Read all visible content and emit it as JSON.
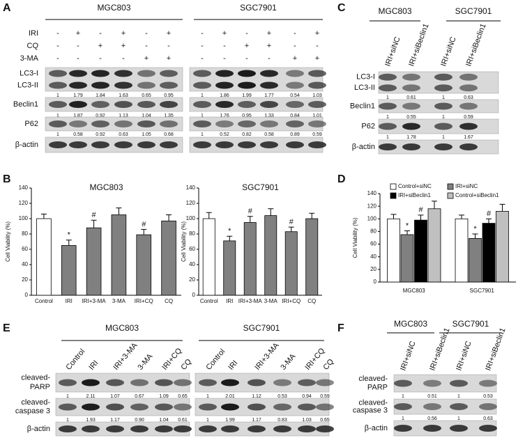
{
  "panels": {
    "A": {
      "letter": "A",
      "groups": [
        "MGC803",
        "SGC7901"
      ],
      "treatments": [
        {
          "name": "IRI",
          "signs": [
            "-",
            "+",
            "-",
            "+",
            "-",
            "+",
            "-",
            "+",
            "-",
            "+",
            "-",
            "+"
          ]
        },
        {
          "name": "CQ",
          "signs": [
            "-",
            "-",
            "+",
            "+",
            "-",
            "-",
            "-",
            "-",
            "+",
            "+",
            "-",
            "-"
          ]
        },
        {
          "name": "3-MA",
          "signs": [
            "-",
            "-",
            "-",
            "-",
            "+",
            "+",
            "-",
            "-",
            "-",
            "-",
            "+",
            "+"
          ]
        }
      ],
      "blots": [
        {
          "labels": [
            "LC3-I",
            "LC3-II"
          ],
          "quant": [
            "1",
            "1.79",
            "1.84",
            "1.63",
            "0.65",
            "0.95",
            "1",
            "1.86",
            "1.99",
            "1.77",
            "0.54",
            "1.03"
          ]
        },
        {
          "labels": [
            "Beclin1"
          ],
          "quant": [
            "1",
            "1.87",
            "0.92",
            "1.13",
            "1.04",
            "1.35",
            "1",
            "1.76",
            "0.95",
            "1.33",
            "0.84",
            "1.01"
          ]
        },
        {
          "labels": [
            "P62"
          ],
          "quant": [
            "1",
            "0.58",
            "0.92",
            "0.63",
            "1.05",
            "0.68",
            "1",
            "0.52",
            "0.82",
            "0.58",
            "0.89",
            "0.59"
          ]
        },
        {
          "labels": [
            "β-actin"
          ]
        }
      ]
    },
    "C": {
      "letter": "C",
      "groups": [
        "MGC803",
        "SGC7901"
      ],
      "columns": [
        "IRI+siNC",
        "IRI+siBeclin1",
        "IRI+siNC",
        "IRI+siBeclin1"
      ],
      "blots": [
        {
          "labels": [
            "LC3-I",
            "LC3-II"
          ],
          "quant": [
            "1",
            "0.61",
            "1",
            "0.63"
          ]
        },
        {
          "labels": [
            "Beclin1"
          ],
          "quant": [
            "1",
            "0.55",
            "1",
            "0.59"
          ]
        },
        {
          "labels": [
            "P62"
          ],
          "quant": [
            "1",
            "1.78",
            "1",
            "1.67"
          ]
        },
        {
          "labels": [
            "β-actin"
          ]
        }
      ]
    },
    "E": {
      "letter": "E",
      "groups": [
        "MGC803",
        "SGC7901"
      ],
      "columns": [
        "Control",
        "IRI",
        "IRI+3-MA",
        "3-MA",
        "IRI+CQ",
        "CQ",
        "Control",
        "IRI",
        "IRI+3-MA",
        "3-MA",
        "IRI+CQ",
        "CQ"
      ],
      "blots": [
        {
          "labels": [
            "cleaved-",
            "PARP"
          ],
          "quant": [
            "1",
            "2.11",
            "1.07",
            "0.67",
            "1.09",
            "0.65",
            "1",
            "2.01",
            "1.12",
            "0.53",
            "0.94",
            "0.59"
          ]
        },
        {
          "labels": [
            "cleaved-",
            "caspase 3"
          ],
          "quant": [
            "1",
            "1.93",
            "1.17",
            "0.90",
            "1.04",
            "0.61",
            "1",
            "1.99",
            "1.17",
            "0.83",
            "1.03",
            "0.65"
          ]
        },
        {
          "labels": [
            "β-actin"
          ]
        }
      ]
    },
    "F": {
      "letter": "F",
      "groups": [
        "MGC803",
        "SGC7901"
      ],
      "columns": [
        "IRI+siNC",
        "IRI+siBeclin1",
        "IRI+siNC",
        "IRI+siBeclin1"
      ],
      "blots": [
        {
          "labels": [
            "cleaved-",
            "PARP"
          ],
          "quant": [
            "1",
            "0.51",
            "1",
            "0.53"
          ]
        },
        {
          "labels": [
            "cleaved-",
            "caspase 3"
          ],
          "quant": [
            "1",
            "0.56",
            "1",
            "0.63"
          ]
        },
        {
          "labels": [
            "β-actin"
          ]
        }
      ]
    }
  },
  "chart_data": [
    {
      "type": "bar",
      "panel": "B",
      "title": "MGC803",
      "ylabel": "Cell Viability (%)",
      "categories": [
        "Control",
        "IRI",
        "IRI+3-MA",
        "3-MA",
        "IRI+CQ",
        "CQ"
      ],
      "values": [
        100,
        65,
        88,
        105,
        79,
        97
      ],
      "errors": [
        6,
        7,
        10,
        9,
        7,
        8
      ],
      "colors": [
        "#ffffff",
        "#808080",
        "#808080",
        "#808080",
        "#808080",
        "#808080"
      ],
      "markers": [
        null,
        "*",
        "#",
        null,
        "#",
        null
      ],
      "ylim": [
        0,
        140
      ],
      "yticks": [
        0,
        20,
        40,
        60,
        80,
        100,
        120,
        140
      ]
    },
    {
      "type": "bar",
      "title": "SGC7901",
      "ylabel": "Cell Viability (%)",
      "categories": [
        "Control",
        "IRI",
        "IRI+3-MA",
        "3-MA",
        "IRI+CQ",
        "CQ"
      ],
      "values": [
        100,
        71,
        95,
        104,
        83,
        100
      ],
      "errors": [
        8,
        6,
        8,
        9,
        6,
        7
      ],
      "colors": [
        "#ffffff",
        "#808080",
        "#808080",
        "#808080",
        "#808080",
        "#808080"
      ],
      "markers": [
        null,
        "*",
        "#",
        null,
        "#",
        null
      ],
      "ylim": [
        0,
        140
      ],
      "yticks": [
        0,
        20,
        40,
        60,
        80,
        100,
        120,
        140
      ]
    },
    {
      "type": "grouped_bar",
      "panel": "D",
      "ylabel": "Cell Viability (%)",
      "categories": [
        "MGC803",
        "SGC7901"
      ],
      "series": [
        {
          "name": "Control+siNC",
          "color": "#ffffff",
          "values": [
            100,
            100
          ],
          "errors": [
            7,
            6
          ],
          "markers": [
            null,
            null
          ]
        },
        {
          "name": "IRI+siNC",
          "color": "#808080",
          "values": [
            75,
            69
          ],
          "errors": [
            6,
            7
          ],
          "markers": [
            "*",
            "*"
          ]
        },
        {
          "name": "IRI+siBeclin1",
          "color": "#000000",
          "values": [
            98,
            93
          ],
          "errors": [
            8,
            7
          ],
          "markers": [
            "#",
            "#"
          ]
        },
        {
          "name": "Control+siBeclin1",
          "color": "#c0c0c0",
          "values": [
            116,
            112
          ],
          "errors": [
            12,
            11
          ],
          "markers": [
            null,
            null
          ]
        }
      ],
      "ylim": [
        0,
        140
      ],
      "yticks": [
        0,
        20,
        40,
        60,
        80,
        100,
        120,
        140
      ],
      "legend": "top"
    }
  ]
}
